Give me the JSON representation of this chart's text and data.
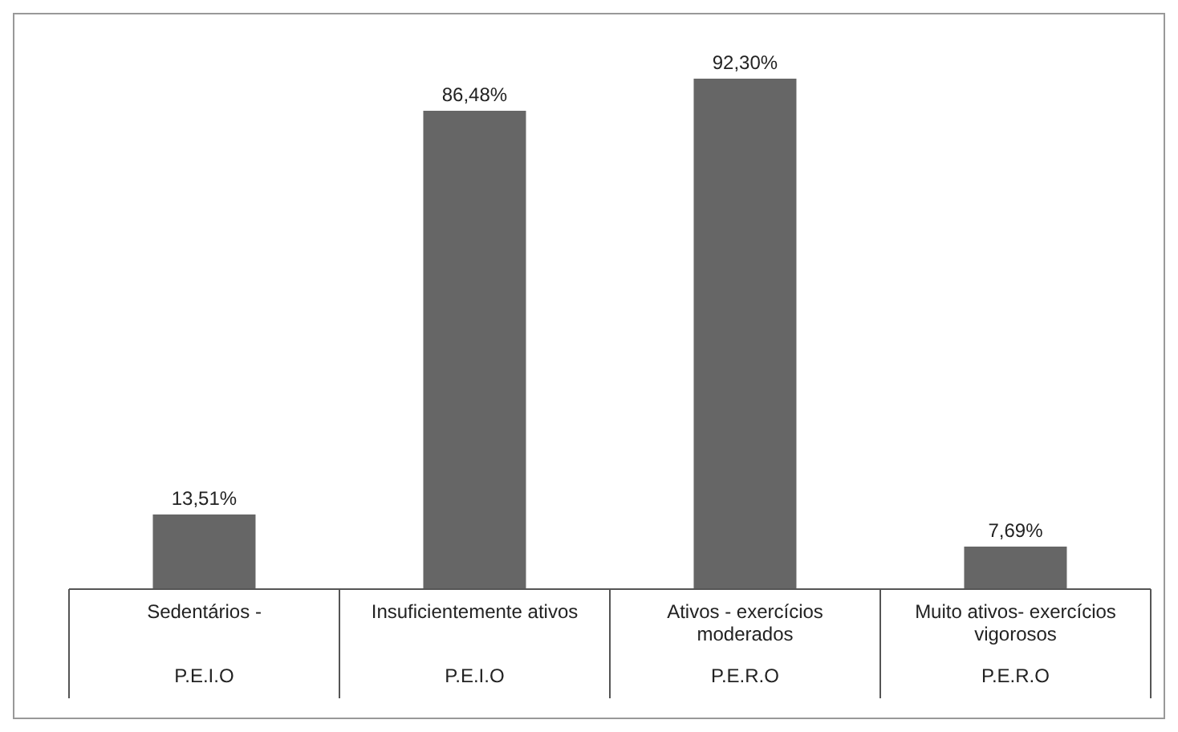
{
  "chart_data": {
    "type": "bar",
    "categories": [
      "Sedentários -\nP.E.I.O",
      "Insuficientemente ativos\nP.E.I.O",
      "Ativos - exercícios moderados\nP.E.R.O",
      "Muito ativos- exercícios vigorosos\nP.E.R.O"
    ],
    "values": [
      13.51,
      86.48,
      92.3,
      7.69
    ],
    "color": "#666666",
    "value_labels": [
      "13,51%",
      "86,48%",
      "92,30%",
      "7,69%"
    ]
  }
}
